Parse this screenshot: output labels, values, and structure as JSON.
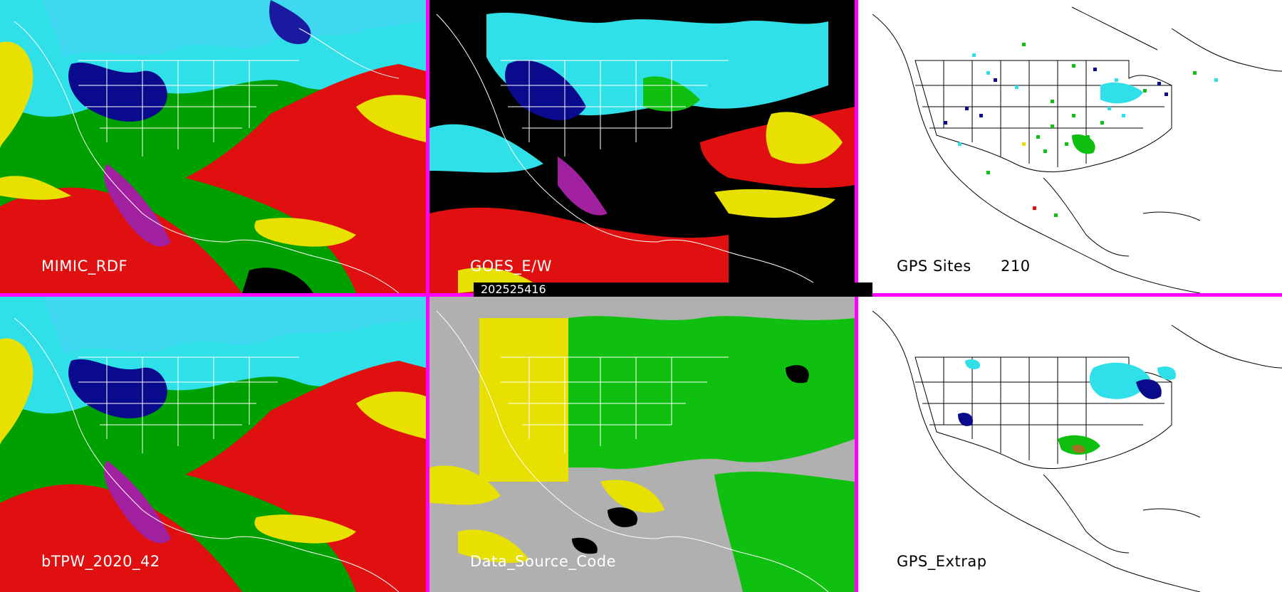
{
  "panels": [
    {
      "id": "mimic-rdf",
      "label": "MIMIC_RDF",
      "background": "#00a000",
      "theme": "light"
    },
    {
      "id": "goes-ew",
      "label": "GOES_E/W",
      "background": "#000000",
      "theme": "light"
    },
    {
      "id": "gps-sites",
      "label": "GPS Sites",
      "count": "210",
      "background": "#ffffff",
      "theme": "dark"
    },
    {
      "id": "btpw",
      "label": "bTPW_2020_42",
      "background": "#00a000",
      "theme": "light"
    },
    {
      "id": "data-source-code",
      "label": "Data_Source_Code",
      "background": "#b0b0b0",
      "theme": "light"
    },
    {
      "id": "gps-extrap",
      "label": "GPS_Extrap",
      "background": "#ffffff",
      "theme": "dark"
    }
  ],
  "timestamp": "202525416",
  "colors": {
    "separator": "#ff00ff",
    "deep_blue": "#0a0a8c",
    "cyan": "#30e0e8",
    "green": "#10c010",
    "yellow": "#e8e000",
    "red": "#e01010",
    "magenta": "#a020a0",
    "gray": "#b0b0b0",
    "black": "#000000",
    "white": "#ffffff"
  }
}
